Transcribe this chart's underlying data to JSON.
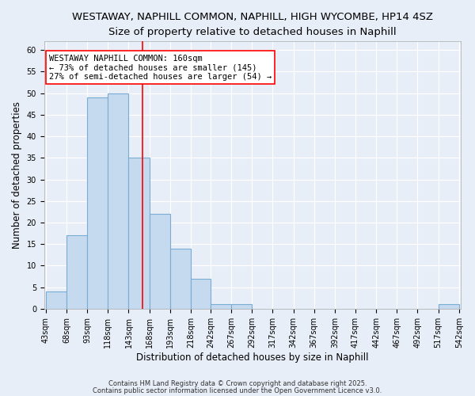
{
  "title1": "WESTAWAY, NAPHILL COMMON, NAPHILL, HIGH WYCOMBE, HP14 4SZ",
  "title2": "Size of property relative to detached houses in Naphill",
  "xlabel": "Distribution of detached houses by size in Naphill",
  "ylabel": "Number of detached properties",
  "bar_values": [
    4,
    17,
    49,
    50,
    35,
    22,
    14,
    7,
    1,
    1,
    0,
    0,
    0,
    0,
    0,
    0,
    0,
    0,
    0,
    1
  ],
  "bin_edges": [
    43,
    68,
    93,
    118,
    143,
    168,
    193,
    218,
    242,
    267,
    292,
    317,
    342,
    367,
    392,
    417,
    442,
    467,
    492,
    517,
    542
  ],
  "x_tick_labels": [
    "43sqm",
    "68sqm",
    "93sqm",
    "118sqm",
    "143sqm",
    "168sqm",
    "193sqm",
    "218sqm",
    "242sqm",
    "267sqm",
    "292sqm",
    "317sqm",
    "342sqm",
    "367sqm",
    "392sqm",
    "417sqm",
    "442sqm",
    "467sqm",
    "492sqm",
    "517sqm",
    "542sqm"
  ],
  "bar_color": "#c5d9ef",
  "bar_edge_color": "#7aadd4",
  "vline_x": 160,
  "vline_color": "red",
  "annotation_text": "WESTAWAY NAPHILL COMMON: 160sqm\n← 73% of detached houses are smaller (145)\n27% of semi-detached houses are larger (54) →",
  "annotation_box_color": "white",
  "annotation_box_edge_color": "red",
  "ylim": [
    0,
    62
  ],
  "yticks": [
    0,
    5,
    10,
    15,
    20,
    25,
    30,
    35,
    40,
    45,
    50,
    55,
    60
  ],
  "footnote1": "Contains HM Land Registry data © Crown copyright and database right 2025.",
  "footnote2": "Contains public sector information licensed under the Open Government Licence v3.0.",
  "bg_color": "#e8eef7",
  "plot_bg_color": "#e8eef7",
  "title1_fontsize": 9.5,
  "title2_fontsize": 9.5,
  "axis_label_fontsize": 8.5,
  "tick_fontsize": 7,
  "annotation_fontsize": 7.5,
  "footnote_fontsize": 6
}
